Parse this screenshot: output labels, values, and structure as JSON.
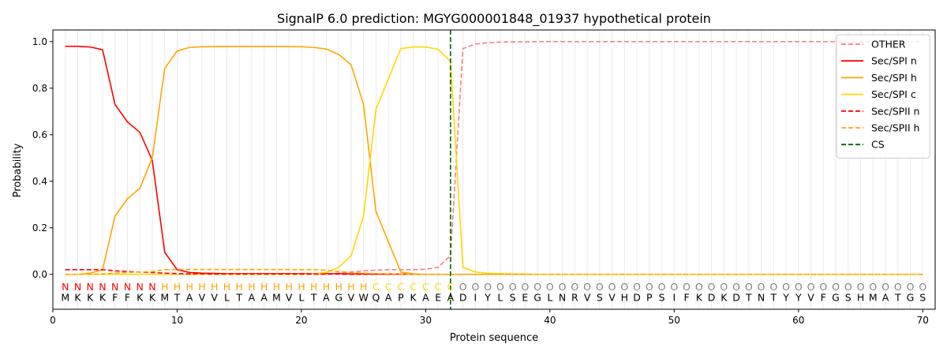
{
  "chart_data": {
    "type": "line",
    "title": "SignalP 6.0 prediction: MGYG000001848_01937 hypothetical protein",
    "xlabel": "Protein sequence",
    "ylabel": "Probability",
    "xlim": [
      0,
      71
    ],
    "ylim": [
      -0.15,
      1.05
    ],
    "xticks": [
      0,
      10,
      20,
      30,
      40,
      50,
      60,
      70
    ],
    "yticks": [
      0.0,
      0.2,
      0.4,
      0.6,
      0.8,
      1.0
    ],
    "legend_position": "top-right",
    "sequence": [
      "M",
      "K",
      "K",
      "K",
      "F",
      "F",
      "K",
      "K",
      "M",
      "T",
      "A",
      "V",
      "V",
      "L",
      "T",
      "A",
      "A",
      "M",
      "V",
      "L",
      "T",
      "A",
      "G",
      "V",
      "W",
      "Q",
      "A",
      "P",
      "K",
      "A",
      "E",
      "A",
      "D",
      "I",
      "Y",
      "L",
      "S",
      "E",
      "G",
      "L",
      "N",
      "R",
      "V",
      "S",
      "V",
      "H",
      "D",
      "P",
      "S",
      "I",
      "F",
      "K",
      "D",
      "K",
      "D",
      "T",
      "N",
      "T",
      "Y",
      "Y",
      "V",
      "F",
      "G",
      "S",
      "H",
      "M",
      "A",
      "T",
      "G",
      "S"
    ],
    "annotation": [
      "N",
      "N",
      "N",
      "N",
      "N",
      "N",
      "N",
      "N",
      "H",
      "H",
      "H",
      "H",
      "H",
      "H",
      "H",
      "H",
      "H",
      "H",
      "H",
      "H",
      "H",
      "H",
      "H",
      "H",
      "H",
      "C",
      "C",
      "C",
      "C",
      "C",
      "C",
      "C",
      "O",
      "O",
      "O",
      "O",
      "O",
      "O",
      "O",
      "O",
      "O",
      "O",
      "O",
      "O",
      "O",
      "O",
      "O",
      "O",
      "O",
      "O",
      "O",
      "O",
      "O",
      "O",
      "O",
      "O",
      "O",
      "O",
      "O",
      "O",
      "O",
      "O",
      "O",
      "O",
      "O",
      "O",
      "O",
      "O",
      "O",
      "O"
    ],
    "annotation_colors": {
      "N": "#ff0000",
      "H": "#ffa500",
      "C": "#ffd700",
      "O": "#808080"
    },
    "cleavage_site": 32,
    "series": [
      {
        "name": "OTHER",
        "color": "#f08080",
        "dash": true,
        "values": [
          0.0,
          0.0,
          0.0,
          0.0,
          0.0,
          0.0,
          0.0,
          0.0,
          0.0,
          0.0,
          0.0,
          0.0,
          0.0,
          0.0,
          0.0,
          0.0,
          0.0,
          0.0,
          0.0,
          0.0,
          0.0,
          0.0,
          0.005,
          0.01,
          0.015,
          0.018,
          0.02,
          0.02,
          0.02,
          0.022,
          0.03,
          0.08,
          0.97,
          0.99,
          0.995,
          0.998,
          0.999,
          0.999,
          1.0,
          1.0,
          1.0,
          1.0,
          1.0,
          1.0,
          1.0,
          1.0,
          1.0,
          1.0,
          1.0,
          1.0,
          1.0,
          1.0,
          1.0,
          1.0,
          1.0,
          1.0,
          1.0,
          1.0,
          1.0,
          1.0,
          1.0,
          1.0,
          1.0,
          1.0,
          1.0,
          1.0,
          1.0,
          1.0,
          1.0,
          1.0
        ]
      },
      {
        "name": "Sec/SPI n",
        "color": "#ff0000",
        "dash": false,
        "values": [
          0.98,
          0.98,
          0.977,
          0.965,
          0.73,
          0.655,
          0.61,
          0.49,
          0.095,
          0.02,
          0.008,
          0.005,
          0.004,
          0.003,
          0.003,
          0.003,
          0.003,
          0.003,
          0.003,
          0.003,
          0.003,
          0.003,
          0.003,
          0.002,
          0.002,
          0.001,
          0.001,
          0.001,
          0.0,
          0.0,
          0.0,
          0.0,
          0.0,
          0.0,
          0.0,
          0.0,
          0.0,
          0.0,
          0.0,
          0.0,
          0.0,
          0.0,
          0.0,
          0.0,
          0.0,
          0.0,
          0.0,
          0.0,
          0.0,
          0.0,
          0.0,
          0.0,
          0.0,
          0.0,
          0.0,
          0.0,
          0.0,
          0.0,
          0.0,
          0.0,
          0.0,
          0.0,
          0.0,
          0.0,
          0.0,
          0.0,
          0.0,
          0.0,
          0.0,
          0.0
        ]
      },
      {
        "name": "Sec/SPI h",
        "color": "#ffa500",
        "dash": false,
        "values": [
          0.0,
          0.0,
          0.005,
          0.02,
          0.25,
          0.325,
          0.37,
          0.5,
          0.885,
          0.96,
          0.975,
          0.978,
          0.979,
          0.979,
          0.979,
          0.979,
          0.979,
          0.979,
          0.979,
          0.978,
          0.975,
          0.968,
          0.945,
          0.9,
          0.73,
          0.27,
          0.14,
          0.01,
          0.002,
          0.0,
          0.0,
          0.0,
          0.0,
          0.0,
          0.0,
          0.0,
          0.0,
          0.0,
          0.0,
          0.0,
          0.0,
          0.0,
          0.0,
          0.0,
          0.0,
          0.0,
          0.0,
          0.0,
          0.0,
          0.0,
          0.0,
          0.0,
          0.0,
          0.0,
          0.0,
          0.0,
          0.0,
          0.0,
          0.0,
          0.0,
          0.0,
          0.0,
          0.0,
          0.0,
          0.0,
          0.0,
          0.0,
          0.0,
          0.0,
          0.0
        ]
      },
      {
        "name": "Sec/SPI c",
        "color": "#ffd700",
        "dash": false,
        "values": [
          0.0,
          0.0,
          0.0,
          0.0,
          0.0,
          0.0,
          0.0,
          0.0,
          0.0,
          0.0,
          0.0,
          0.0,
          0.0,
          0.0,
          0.0,
          0.0,
          0.0,
          0.0,
          0.0,
          0.0,
          0.002,
          0.008,
          0.03,
          0.08,
          0.25,
          0.71,
          0.84,
          0.97,
          0.977,
          0.977,
          0.967,
          0.915,
          0.03,
          0.01,
          0.005,
          0.003,
          0.002,
          0.001,
          0.0,
          0.0,
          0.0,
          0.0,
          0.0,
          0.0,
          0.0,
          0.0,
          0.0,
          0.0,
          0.0,
          0.0,
          0.0,
          0.0,
          0.0,
          0.0,
          0.0,
          0.0,
          0.0,
          0.0,
          0.0,
          0.0,
          0.0,
          0.0,
          0.0,
          0.0,
          0.0,
          0.0,
          0.0,
          0.0,
          0.0,
          0.0
        ]
      },
      {
        "name": "Sec/SPII n",
        "color": "#ff0000",
        "dash": true,
        "values": [
          0.02,
          0.02,
          0.02,
          0.02,
          0.015,
          0.012,
          0.01,
          0.008,
          0.005,
          0.003,
          0.002,
          0.002,
          0.001,
          0.001,
          0.001,
          0.001,
          0.001,
          0.001,
          0.001,
          0.001,
          0.001,
          0.001,
          0.001,
          0.0,
          0.0,
          0.0,
          0.0,
          0.0,
          0.0,
          0.0,
          0.0,
          0.0,
          0.0,
          0.0,
          0.0,
          0.0,
          0.0,
          0.0,
          0.0,
          0.0,
          0.0,
          0.0,
          0.0,
          0.0,
          0.0,
          0.0,
          0.0,
          0.0,
          0.0,
          0.0,
          0.0,
          0.0,
          0.0,
          0.0,
          0.0,
          0.0,
          0.0,
          0.0,
          0.0,
          0.0,
          0.0,
          0.0,
          0.0,
          0.0,
          0.0,
          0.0,
          0.0,
          0.0,
          0.0,
          0.0
        ]
      },
      {
        "name": "Sec/SPII h",
        "color": "#ffa500",
        "dash": true,
        "values": [
          0.0,
          0.0,
          0.0,
          0.002,
          0.005,
          0.008,
          0.01,
          0.012,
          0.02,
          0.021,
          0.021,
          0.021,
          0.021,
          0.021,
          0.021,
          0.021,
          0.021,
          0.021,
          0.021,
          0.02,
          0.02,
          0.018,
          0.012,
          0.008,
          0.005,
          0.003,
          0.002,
          0.001,
          0.0,
          0.0,
          0.0,
          0.0,
          0.0,
          0.0,
          0.0,
          0.0,
          0.0,
          0.0,
          0.0,
          0.0,
          0.0,
          0.0,
          0.0,
          0.0,
          0.0,
          0.0,
          0.0,
          0.0,
          0.0,
          0.0,
          0.0,
          0.0,
          0.0,
          0.0,
          0.0,
          0.0,
          0.0,
          0.0,
          0.0,
          0.0,
          0.0,
          0.0,
          0.0,
          0.0,
          0.0,
          0.0,
          0.0,
          0.0,
          0.0,
          0.0
        ]
      }
    ],
    "legend": [
      {
        "name": "OTHER",
        "color": "#f08080",
        "dash": true
      },
      {
        "name": "Sec/SPI n",
        "color": "#ff0000",
        "dash": false
      },
      {
        "name": "Sec/SPI h",
        "color": "#ffa500",
        "dash": false
      },
      {
        "name": "Sec/SPI c",
        "color": "#ffd700",
        "dash": false
      },
      {
        "name": "Sec/SPII n",
        "color": "#ff0000",
        "dash": true
      },
      {
        "name": "Sec/SPII h",
        "color": "#ffa500",
        "dash": true
      },
      {
        "name": "CS",
        "color": "#006400",
        "dash": true
      }
    ]
  }
}
